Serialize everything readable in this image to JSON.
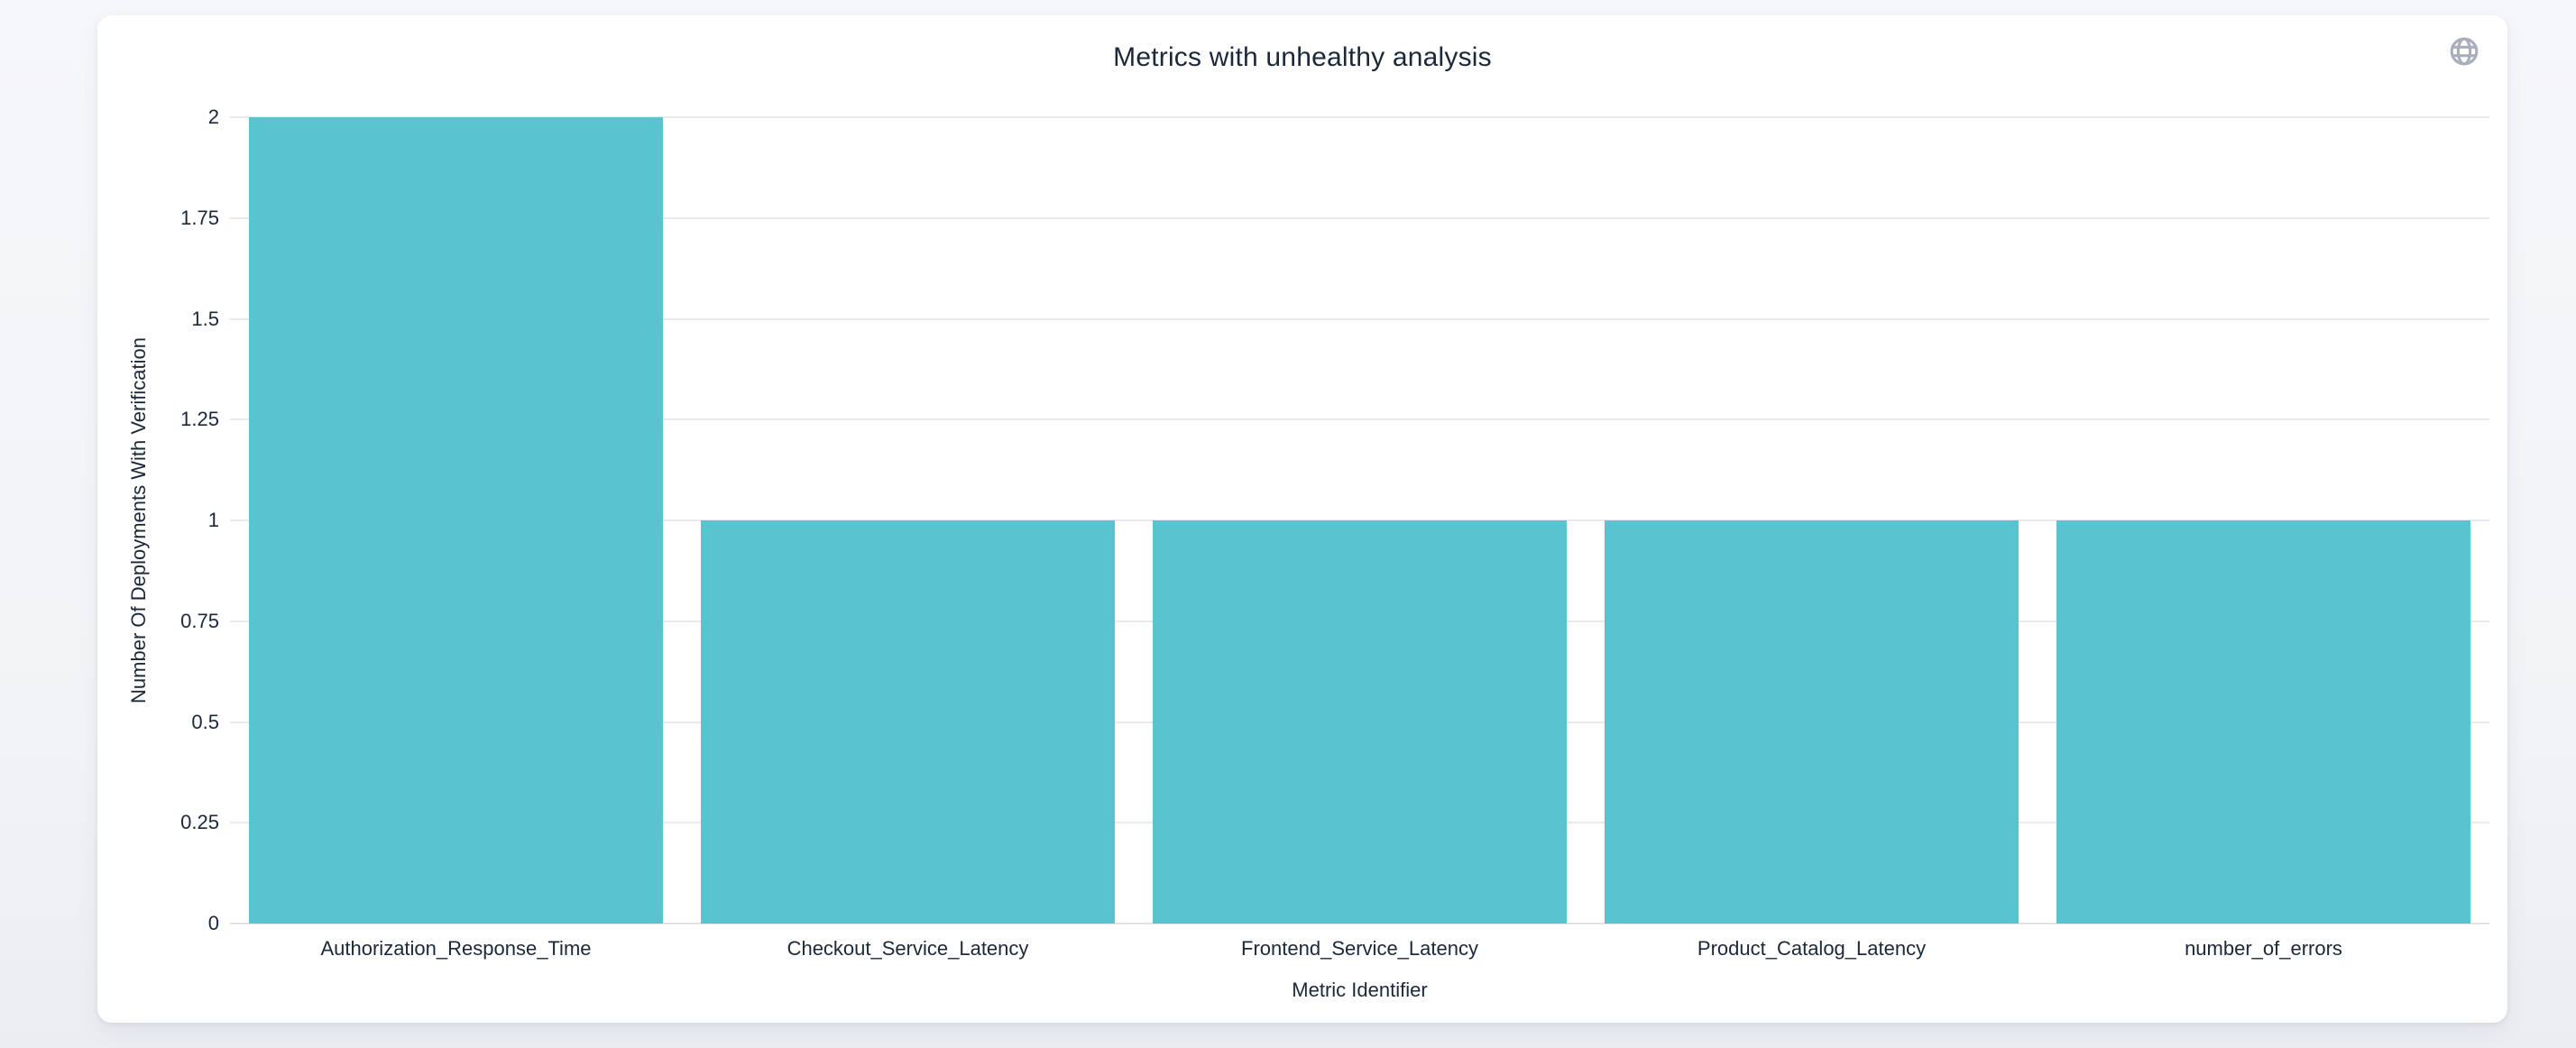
{
  "header": {
    "title": "Metrics with unhealthy analysis"
  },
  "chart_data": {
    "type": "bar",
    "title": "Metrics with unhealthy analysis",
    "categories": [
      "Authorization_Response_Time",
      "Checkout_Service_Latency",
      "Frontend_Service_Latency",
      "Product_Catalog_Latency",
      "number_of_errors"
    ],
    "values": [
      2,
      1,
      1,
      1,
      1
    ],
    "xlabel": "Metric Identifier",
    "ylabel": "Number Of Deployments With Verification",
    "ylim": [
      0,
      2
    ],
    "yticks": [
      0,
      0.25,
      0.5,
      0.75,
      1,
      1.25,
      1.5,
      1.75,
      2
    ],
    "grid": true,
    "legend": null,
    "bar_color": "#59C3D0"
  },
  "colors": {
    "bar": "#59C3D0",
    "text": "#1B2839",
    "gridline": "#E8EAED",
    "axis_line": "#DDE2E9",
    "icon": "#A9AFBA",
    "card_bg": "#FFFFFF",
    "page_bg": "#F1F3F6"
  }
}
